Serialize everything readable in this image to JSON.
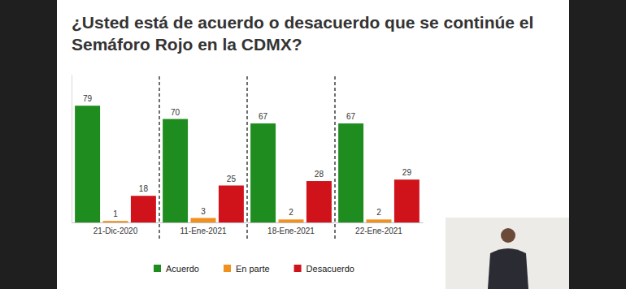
{
  "chart_data": {
    "type": "bar",
    "title": "¿Usted está de acuerdo o desacuerdo que se continúe el Semáforo Rojo en la CDMX?",
    "categories": [
      "21-Dic-2020",
      "11-Ene-2021",
      "18-Ene-2021",
      "22-Ene-2021"
    ],
    "series": [
      {
        "name": "Acuerdo",
        "color": "#1e8c1e",
        "values": [
          79,
          70,
          67,
          67
        ]
      },
      {
        "name": "En parte",
        "color": "#f0901e",
        "values": [
          1,
          3,
          2,
          2
        ]
      },
      {
        "name": "Desacuerdo",
        "color": "#d0121b",
        "values": [
          18,
          25,
          28,
          29
        ]
      }
    ],
    "ylim": [
      0,
      100
    ],
    "data_labels": true,
    "tick_labels": "x",
    "legend": "bottom"
  }
}
